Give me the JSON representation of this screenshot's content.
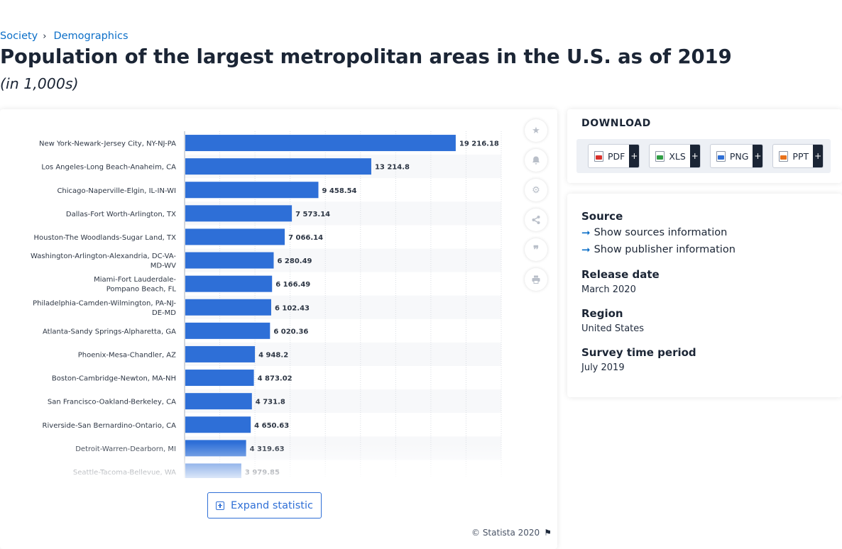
{
  "breadcrumb": {
    "items": [
      "Society",
      "Demographics"
    ],
    "separator": "›"
  },
  "page": {
    "title": "Population of the largest metropolitan areas in the U.S. as of 2019",
    "subtitle": "(in 1,000s)"
  },
  "chart_data": {
    "type": "bar",
    "orientation": "horizontal",
    "categories": [
      "New York-Newark-Jersey City, NY-NJ-PA",
      "Los Angeles-Long Beach-Anaheim, CA",
      "Chicago-Naperville-Elgin, IL-IN-WI",
      "Dallas-Fort Worth-Arlington, TX",
      "Houston-The Woodlands-Sugar Land, TX",
      "Washington-Arlington-Alexandria, DC-VA-MD-WV",
      "Miami-Fort Lauderdale-Pompano Beach, FL",
      "Philadelphia-Camden-Wilmington, PA-NJ-DE-MD",
      "Atlanta-Sandy Springs-Alpharetta, GA",
      "Phoenix-Mesa-Chandler, AZ",
      "Boston-Cambridge-Newton, MA-NH",
      "San Francisco-Oakland-Berkeley, CA",
      "Riverside-San Bernardino-Ontario, CA",
      "Detroit-Warren-Dearborn, MI",
      "Seattle-Tacoma-Bellevue, WA"
    ],
    "values": [
      19216.18,
      13214.8,
      9458.54,
      7573.14,
      7066.14,
      6280.49,
      6166.49,
      6102.43,
      6020.36,
      4948.2,
      4873.02,
      4731.8,
      4650.63,
      4319.63,
      3979.85
    ],
    "value_labels": [
      "19 216.18",
      "13 214.8",
      "9 458.54",
      "7 573.14",
      "7 066.14",
      "6 280.49",
      "6 166.49",
      "6 102.43",
      "6 020.36",
      "4 948.2",
      "4 873.02",
      "4 731.8",
      "4 650.63",
      "4 319.63",
      "3 979.85"
    ],
    "xlim": [
      0,
      22500
    ],
    "grid": true,
    "bar_color": "#2e6fd7"
  },
  "chart_footer": {
    "expand_label": "Expand statistic",
    "copyright": "© Statista 2020"
  },
  "side_tools": [
    "star-icon",
    "bell-icon",
    "gear-icon",
    "share-icon",
    "quote-icon",
    "print-icon"
  ],
  "download": {
    "title": "DOWNLOAD",
    "buttons": [
      {
        "label": "PDF",
        "color": "#d9312b"
      },
      {
        "label": "XLS",
        "color": "#2f9e44"
      },
      {
        "label": "PNG",
        "color": "#2f6fd6"
      },
      {
        "label": "PPT",
        "color": "#e8721c"
      }
    ],
    "plus": "+"
  },
  "info": {
    "source_label": "Source",
    "show_sources": "Show sources information",
    "show_publisher": "Show publisher information",
    "release_label": "Release date",
    "release_value": "March 2020",
    "region_label": "Region",
    "region_value": "United States",
    "period_label": "Survey time period",
    "period_value": "July 2019"
  }
}
